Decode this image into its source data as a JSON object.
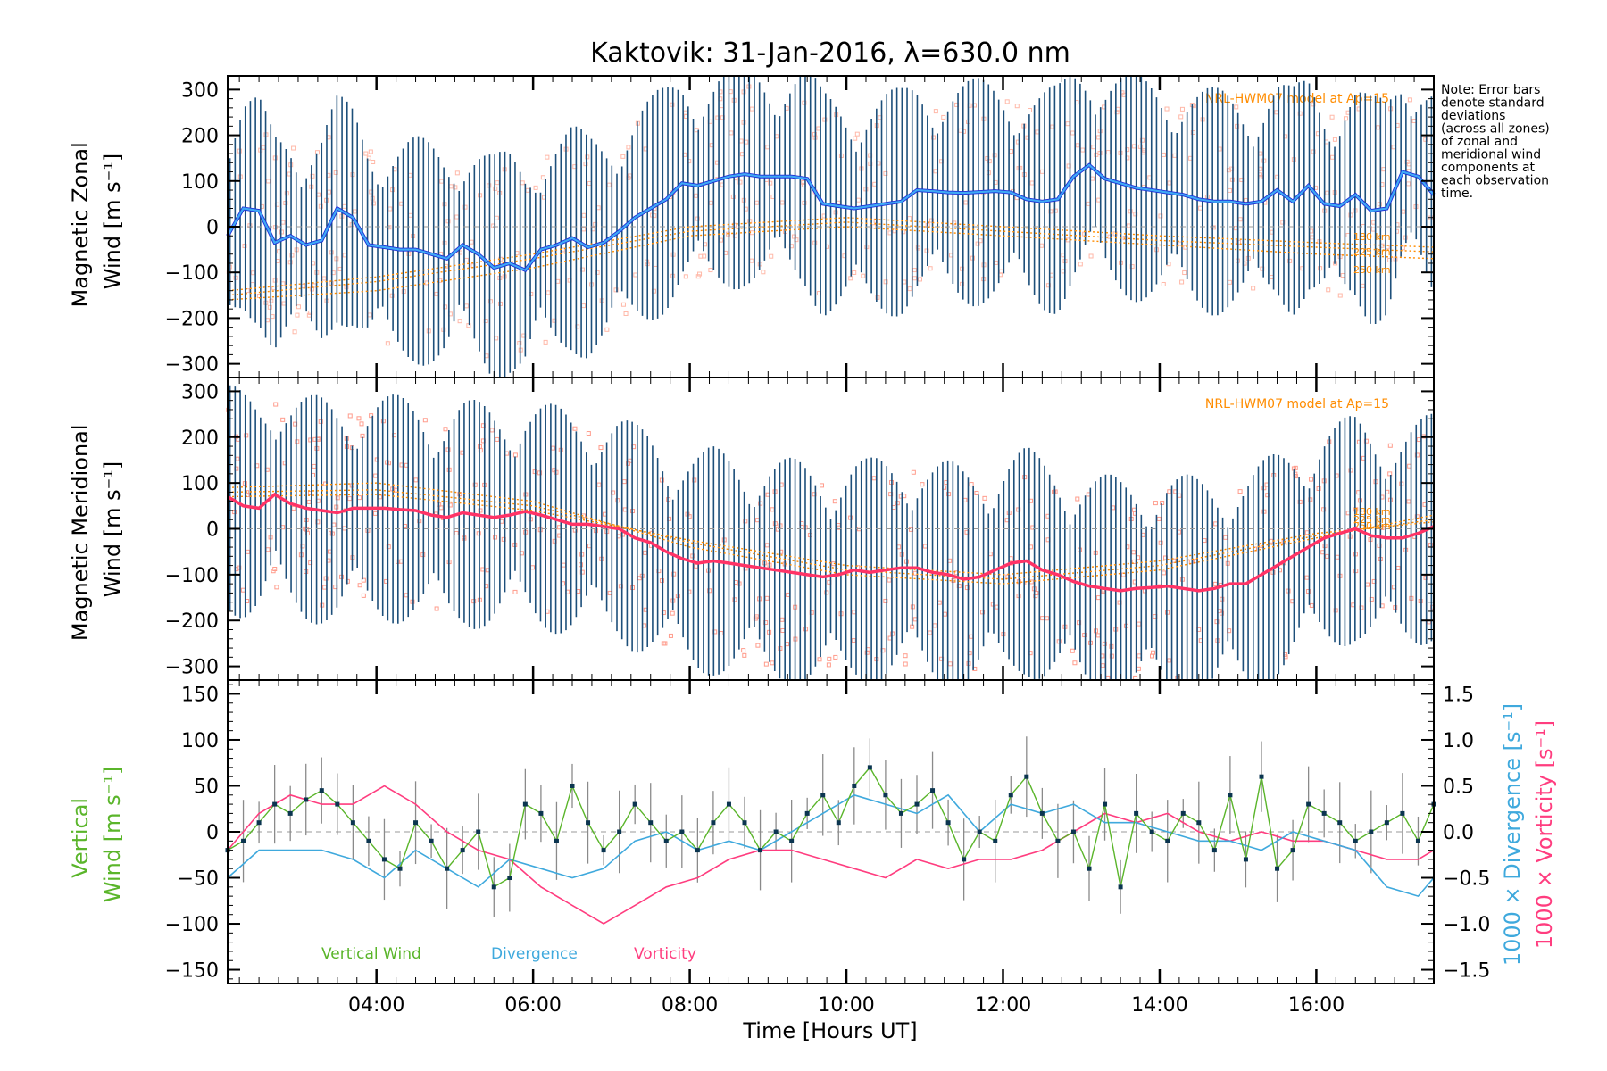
{
  "title": "Kaktovik: 31-Jan-2016, λ=630.0 nm",
  "note": [
    "Note: Error bars",
    "denote standard",
    "deviations",
    "(across all zones)",
    "of zonal and",
    "meridional wind",
    "components at",
    "each observation",
    "time."
  ],
  "xlabel": "Time [Hours UT]",
  "x_ticks": [
    "04:00",
    "06:00",
    "08:00",
    "10:00",
    "12:00",
    "14:00",
    "16:00"
  ],
  "colors": {
    "zonal_dark": "#1f2fd6",
    "zonal_light": "#3fa9f5",
    "meridional": "#ff3366",
    "error_bar": "#1d4f7a",
    "model": "#ff8c00",
    "samples_zonal": "#ffb8a8",
    "samples_meridional": "#ff9c8c",
    "vertical": "#5ab52a",
    "divergence": "#3fa9dd",
    "vorticity": "#ff3d7f",
    "vert_err": "#8a8a8a",
    "zero_line": "#999999"
  },
  "chart_data": [
    {
      "type": "line",
      "panel": "zonal",
      "ylabel": [
        "Magnetic Zonal",
        "Wind [m s⁻¹]"
      ],
      "ylim": [
        -330,
        330
      ],
      "y_ticks": [
        "300",
        "200",
        "100",
        "0",
        "−100",
        "−200",
        "−300"
      ],
      "xlim": [
        2.1,
        17.5
      ],
      "model_label": "NRL-HWM07 model at Ap=15",
      "model_alt_labels": [
        "180 km",
        "225 km",
        "250 km"
      ],
      "series": [
        {
          "x": [
            2.1,
            2.3,
            2.5,
            2.7,
            2.9,
            3.1,
            3.3,
            3.5,
            3.7,
            3.9,
            4.1,
            4.3,
            4.5,
            4.7,
            4.9,
            5.1,
            5.3,
            5.5,
            5.7,
            5.9,
            6.1,
            6.3,
            6.5,
            6.7,
            6.9,
            7.1,
            7.3,
            7.5,
            7.7,
            7.9,
            8.1,
            8.3,
            8.5,
            8.7,
            8.9,
            9.1,
            9.3,
            9.5,
            9.7,
            9.9,
            10.1,
            10.3,
            10.5,
            10.7,
            10.9,
            11.1,
            11.3,
            11.5,
            11.7,
            11.9,
            12.1,
            12.3,
            12.5,
            12.7,
            12.9,
            13.1,
            13.3,
            13.5,
            13.7,
            13.9,
            14.1,
            14.3,
            14.5,
            14.7,
            14.9,
            15.1,
            15.3,
            15.5,
            15.7,
            15.9,
            16.1,
            16.3,
            16.5,
            16.7,
            16.9,
            17.1,
            17.3,
            17.5
          ],
          "y": [
            -20,
            40,
            35,
            -35,
            -20,
            -40,
            -30,
            40,
            20,
            -40,
            -45,
            -50,
            -50,
            -60,
            -70,
            -40,
            -60,
            -90,
            -80,
            -95,
            -50,
            -40,
            -25,
            -45,
            -35,
            -10,
            20,
            40,
            60,
            95,
            90,
            100,
            110,
            115,
            110,
            110,
            110,
            105,
            50,
            45,
            40,
            45,
            50,
            55,
            80,
            78,
            75,
            74,
            76,
            78,
            75,
            60,
            55,
            60,
            110,
            135,
            105,
            95,
            85,
            80,
            75,
            70,
            60,
            55,
            55,
            50,
            55,
            80,
            55,
            90,
            50,
            45,
            70,
            35,
            40,
            120,
            110,
            70
          ]
        }
      ],
      "model": [
        {
          "x": [
            2.1,
            4.0,
            6.0,
            8.0,
            10.0,
            12.0,
            14.0,
            16.0,
            17.5
          ],
          "y": [
            -160,
            -140,
            -90,
            -20,
            0,
            -20,
            -40,
            -60,
            -70
          ]
        },
        {
          "x": [
            2.1,
            4.0,
            6.0,
            8.0,
            10.0,
            12.0,
            14.0,
            16.0,
            17.5
          ],
          "y": [
            -150,
            -120,
            -70,
            -10,
            10,
            -10,
            -30,
            -45,
            -55
          ]
        },
        {
          "x": [
            2.1,
            4.0,
            6.0,
            8.0,
            10.0,
            12.0,
            14.0,
            16.0,
            17.5
          ],
          "y": [
            -140,
            -110,
            -60,
            0,
            20,
            0,
            -20,
            -35,
            -45
          ]
        }
      ]
    },
    {
      "type": "line",
      "panel": "meridional",
      "ylabel": [
        "Magnetic Meridional",
        "Wind [m s⁻¹]"
      ],
      "ylim": [
        -330,
        330
      ],
      "y_ticks": [
        "300",
        "200",
        "100",
        "0",
        "−100",
        "−200",
        "−300"
      ],
      "xlim": [
        2.1,
        17.5
      ],
      "model_label": "NRL-HWM07 model at Ap=15",
      "model_alt_labels": [
        "180 km",
        "225 km",
        "250 km"
      ],
      "series": [
        {
          "x": [
            2.1,
            2.3,
            2.5,
            2.7,
            2.9,
            3.1,
            3.3,
            3.5,
            3.7,
            3.9,
            4.1,
            4.3,
            4.5,
            4.7,
            4.9,
            5.1,
            5.3,
            5.5,
            5.7,
            5.9,
            6.1,
            6.3,
            6.5,
            6.7,
            6.9,
            7.1,
            7.3,
            7.5,
            7.7,
            7.9,
            8.1,
            8.3,
            8.5,
            8.7,
            8.9,
            9.1,
            9.3,
            9.5,
            9.7,
            9.9,
            10.1,
            10.3,
            10.5,
            10.7,
            10.9,
            11.1,
            11.3,
            11.5,
            11.7,
            11.9,
            12.1,
            12.3,
            12.5,
            12.7,
            12.9,
            13.1,
            13.3,
            13.5,
            13.7,
            13.9,
            14.1,
            14.3,
            14.5,
            14.7,
            14.9,
            15.1,
            15.3,
            15.5,
            15.7,
            15.9,
            16.1,
            16.3,
            16.5,
            16.7,
            16.9,
            17.1,
            17.3,
            17.5
          ],
          "y": [
            70,
            50,
            45,
            75,
            55,
            45,
            40,
            35,
            45,
            45,
            45,
            42,
            40,
            30,
            25,
            35,
            30,
            25,
            30,
            38,
            30,
            20,
            10,
            10,
            5,
            0,
            -20,
            -30,
            -50,
            -65,
            -75,
            -70,
            -75,
            -80,
            -85,
            -90,
            -95,
            -100,
            -105,
            -100,
            -90,
            -95,
            -90,
            -85,
            -85,
            -95,
            -100,
            -110,
            -105,
            -90,
            -75,
            -70,
            -90,
            -100,
            -115,
            -125,
            -130,
            -135,
            -130,
            -128,
            -125,
            -130,
            -135,
            -130,
            -120,
            -120,
            -100,
            -80,
            -60,
            -40,
            -20,
            -10,
            0,
            -15,
            -20,
            -20,
            -10,
            5
          ]
        }
      ],
      "model": [
        {
          "x": [
            2.1,
            4.0,
            6.0,
            8.0,
            10.0,
            12.0,
            14.0,
            16.0,
            17.5
          ],
          "y": [
            90,
            100,
            60,
            -40,
            -100,
            -120,
            -90,
            -20,
            30
          ]
        },
        {
          "x": [
            2.1,
            4.0,
            6.0,
            8.0,
            10.0,
            12.0,
            14.0,
            16.0,
            17.5
          ],
          "y": [
            80,
            85,
            50,
            -30,
            -90,
            -110,
            -80,
            -15,
            20
          ]
        },
        {
          "x": [
            2.1,
            4.0,
            6.0,
            8.0,
            10.0,
            12.0,
            14.0,
            16.0,
            17.5
          ],
          "y": [
            70,
            75,
            40,
            -25,
            -80,
            -100,
            -70,
            -10,
            15
          ]
        }
      ]
    },
    {
      "type": "line",
      "panel": "vertical",
      "ylabel": [
        "Vertical",
        "Wind [m s⁻¹]"
      ],
      "ylim": [
        -165,
        165
      ],
      "y_ticks": [
        "150",
        "100",
        "50",
        "0",
        "−50",
        "−100",
        "−150"
      ],
      "y2label": [
        "1000 × Divergence [s⁻¹]",
        "1000 × Vorticity [s⁻¹]"
      ],
      "y2lim": [
        -1.65,
        1.65
      ],
      "y2_ticks": [
        "1.5",
        "1.0",
        "0.5",
        "0.0",
        "−0.5",
        "−1.0",
        "−1.5"
      ],
      "xlim": [
        2.1,
        17.5
      ],
      "legend": [
        "Vertical Wind",
        "Divergence",
        "Vorticity"
      ],
      "series": [
        {
          "name": "Vertical Wind",
          "x": [
            2.1,
            2.3,
            2.5,
            2.7,
            2.9,
            3.1,
            3.3,
            3.5,
            3.7,
            3.9,
            4.1,
            4.3,
            4.5,
            4.7,
            4.9,
            5.1,
            5.3,
            5.5,
            5.7,
            5.9,
            6.1,
            6.3,
            6.5,
            6.7,
            6.9,
            7.1,
            7.3,
            7.5,
            7.7,
            7.9,
            8.1,
            8.3,
            8.5,
            8.7,
            8.9,
            9.1,
            9.3,
            9.5,
            9.7,
            9.9,
            10.1,
            10.3,
            10.5,
            10.7,
            10.9,
            11.1,
            11.3,
            11.5,
            11.7,
            11.9,
            12.1,
            12.3,
            12.5,
            12.7,
            12.9,
            13.1,
            13.3,
            13.5,
            13.7,
            13.9,
            14.1,
            14.3,
            14.5,
            14.7,
            14.9,
            15.1,
            15.3,
            15.5,
            15.7,
            15.9,
            16.1,
            16.3,
            16.5,
            16.7,
            16.9,
            17.1,
            17.3,
            17.5
          ],
          "y": [
            -20,
            -10,
            10,
            30,
            20,
            35,
            45,
            30,
            10,
            -10,
            -30,
            -40,
            10,
            -10,
            -40,
            -20,
            0,
            -60,
            -50,
            30,
            20,
            -10,
            50,
            10,
            -20,
            0,
            30,
            10,
            -10,
            0,
            -20,
            10,
            30,
            10,
            -20,
            0,
            -10,
            20,
            40,
            10,
            50,
            70,
            40,
            20,
            30,
            45,
            10,
            -30,
            0,
            -10,
            40,
            60,
            20,
            -10,
            0,
            -40,
            30,
            -60,
            20,
            0,
            -10,
            20,
            10,
            -20,
            40,
            -30,
            60,
            -40,
            -20,
            30,
            20,
            10,
            -10,
            0,
            10,
            20,
            -10,
            30
          ]
        },
        {
          "name": "Divergence",
          "x": [
            2.1,
            2.5,
            2.9,
            3.3,
            3.7,
            4.1,
            4.5,
            4.9,
            5.3,
            5.7,
            6.1,
            6.5,
            6.9,
            7.3,
            7.7,
            8.1,
            8.5,
            8.9,
            9.3,
            9.7,
            10.1,
            10.5,
            10.9,
            11.3,
            11.7,
            12.1,
            12.5,
            12.9,
            13.3,
            13.7,
            14.1,
            14.5,
            14.9,
            15.3,
            15.7,
            16.1,
            16.5,
            16.9,
            17.3,
            17.5
          ],
          "y": [
            -0.5,
            -0.2,
            -0.2,
            -0.2,
            -0.3,
            -0.5,
            -0.2,
            -0.4,
            -0.6,
            -0.3,
            -0.4,
            -0.5,
            -0.4,
            -0.1,
            0.0,
            -0.2,
            -0.1,
            -0.2,
            0.0,
            0.2,
            0.4,
            0.3,
            0.2,
            0.4,
            0.0,
            0.3,
            0.2,
            0.3,
            0.1,
            0.1,
            0.0,
            -0.1,
            -0.1,
            -0.2,
            0.0,
            -0.1,
            -0.2,
            -0.6,
            -0.7,
            -0.5
          ]
        },
        {
          "name": "Vorticity",
          "x": [
            2.1,
            2.5,
            2.9,
            3.3,
            3.7,
            4.1,
            4.5,
            4.9,
            5.3,
            5.7,
            6.1,
            6.5,
            6.9,
            7.3,
            7.7,
            8.1,
            8.5,
            8.9,
            9.3,
            9.7,
            10.1,
            10.5,
            10.9,
            11.3,
            11.7,
            12.1,
            12.5,
            12.9,
            13.3,
            13.7,
            14.1,
            14.5,
            14.9,
            15.3,
            15.7,
            16.1,
            16.5,
            16.9,
            17.3,
            17.5
          ],
          "y": [
            -0.2,
            0.2,
            0.4,
            0.3,
            0.3,
            0.5,
            0.3,
            0.0,
            -0.2,
            -0.3,
            -0.6,
            -0.8,
            -1.0,
            -0.8,
            -0.6,
            -0.5,
            -0.3,
            -0.2,
            -0.2,
            -0.3,
            -0.4,
            -0.5,
            -0.3,
            -0.4,
            -0.3,
            -0.3,
            -0.2,
            0.0,
            0.2,
            0.1,
            0.2,
            0.0,
            -0.1,
            0.0,
            -0.1,
            -0.1,
            -0.2,
            -0.3,
            -0.3,
            -0.2
          ]
        }
      ]
    }
  ]
}
